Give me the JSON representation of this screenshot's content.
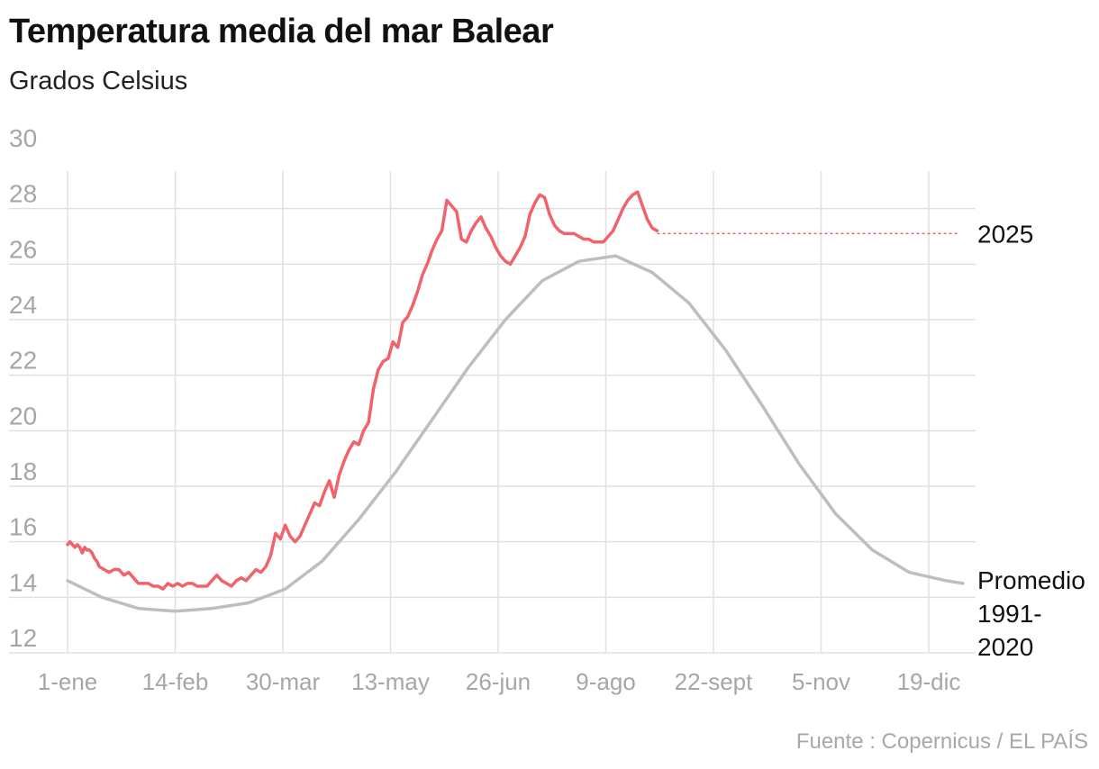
{
  "title": "Temperatura media del mar Balear",
  "subtitle": "Grados Celsius",
  "source": "Fuente : Copernicus / EL PAÍS",
  "colors": {
    "current": "#f0636b",
    "average": "#b9c0be",
    "grid": "#e0e0e0",
    "tick": "#a6a6a6",
    "label": "#111111"
  },
  "chart_data": {
    "type": "line",
    "title": "Temperatura media del mar Balear",
    "subtitle": "Grados Celsius",
    "xlabel": "",
    "ylabel": "",
    "x_unit": "day of year",
    "xlim": [
      1,
      365
    ],
    "ylim": [
      12,
      30
    ],
    "y_ticks": [
      12,
      14,
      16,
      18,
      20,
      22,
      24,
      26,
      28,
      30
    ],
    "x_ticks": [
      {
        "x": 1,
        "label": "1-ene"
      },
      {
        "x": 45,
        "label": "14-feb"
      },
      {
        "x": 89,
        "label": "30-mar"
      },
      {
        "x": 133,
        "label": "13-may"
      },
      {
        "x": 177,
        "label": "26-jun"
      },
      {
        "x": 221,
        "label": "9-ago"
      },
      {
        "x": 265,
        "label": "22-sept"
      },
      {
        "x": 309,
        "label": "5-nov"
      },
      {
        "x": 353,
        "label": "19-dic"
      }
    ],
    "grid": true,
    "series": [
      {
        "name": "2025",
        "color": "#f0636b",
        "x": [
          1,
          2,
          3,
          4,
          5,
          6,
          7,
          8,
          9,
          10,
          11,
          12,
          13,
          14,
          16,
          18,
          20,
          22,
          24,
          26,
          28,
          30,
          32,
          34,
          36,
          38,
          40,
          42,
          44,
          46,
          48,
          50,
          52,
          54,
          56,
          58,
          60,
          62,
          64,
          66,
          68,
          70,
          72,
          74,
          76,
          78,
          80,
          82,
          84,
          86,
          88,
          90,
          92,
          94,
          96,
          98,
          100,
          102,
          104,
          106,
          108,
          110,
          112,
          114,
          116,
          118,
          120,
          122,
          124,
          126,
          128,
          130,
          132,
          134,
          136,
          138,
          140,
          142,
          144,
          146,
          148,
          150,
          152,
          154,
          156,
          158,
          160,
          162,
          164,
          166,
          168,
          170,
          172,
          174,
          176,
          178,
          180,
          182,
          184,
          186,
          188,
          190,
          192,
          194,
          196,
          198,
          200,
          202,
          204,
          206,
          208,
          210,
          212,
          214,
          216,
          218,
          220,
          222,
          224,
          226,
          228,
          230,
          232,
          234,
          236,
          238,
          240,
          242
        ],
        "values": [
          15.9,
          16.0,
          15.9,
          15.8,
          15.9,
          15.8,
          15.6,
          15.8,
          15.7,
          15.7,
          15.6,
          15.4,
          15.3,
          15.1,
          15.0,
          14.9,
          15.0,
          15.0,
          14.8,
          14.9,
          14.7,
          14.5,
          14.5,
          14.5,
          14.4,
          14.4,
          14.3,
          14.5,
          14.4,
          14.5,
          14.4,
          14.5,
          14.5,
          14.4,
          14.4,
          14.4,
          14.6,
          14.8,
          14.6,
          14.5,
          14.4,
          14.6,
          14.7,
          14.6,
          14.8,
          15.0,
          14.9,
          15.1,
          15.5,
          16.3,
          16.1,
          16.6,
          16.2,
          16.0,
          16.2,
          16.6,
          17.0,
          17.4,
          17.3,
          17.8,
          18.2,
          17.6,
          18.4,
          18.9,
          19.3,
          19.6,
          19.5,
          20.0,
          20.3,
          21.5,
          22.2,
          22.5,
          22.6,
          23.2,
          23.0,
          23.9,
          24.1,
          24.5,
          25.0,
          25.6,
          26.0,
          26.5,
          26.9,
          27.2,
          28.3,
          28.1,
          27.9,
          26.9,
          26.8,
          27.2,
          27.5,
          27.7,
          27.3,
          27.0,
          26.6,
          26.3,
          26.1,
          26.0,
          26.3,
          26.6,
          27.0,
          27.8,
          28.2,
          28.5,
          28.4,
          27.8,
          27.4,
          27.2,
          27.1,
          27.1,
          27.1,
          27.0,
          26.9,
          26.9,
          26.8,
          26.8,
          26.8,
          27.0,
          27.2,
          27.6,
          28.0,
          28.3,
          28.5,
          28.6,
          28.1,
          27.6,
          27.3,
          27.2
        ],
        "projection": {
          "from_x": 242,
          "to_x": 367,
          "value": 27.1,
          "style": "dotted"
        },
        "label": "2025"
      },
      {
        "name": "Promedio 1991-2020",
        "color": "#b9c0be",
        "x": [
          1,
          15,
          30,
          45,
          60,
          75,
          90,
          105,
          120,
          135,
          150,
          165,
          180,
          195,
          210,
          225,
          240,
          255,
          270,
          285,
          300,
          315,
          330,
          345,
          360,
          367
        ],
        "values": [
          14.6,
          14.0,
          13.6,
          13.5,
          13.6,
          13.8,
          14.3,
          15.3,
          16.8,
          18.5,
          20.4,
          22.3,
          24.0,
          25.4,
          26.1,
          26.3,
          25.7,
          24.6,
          22.9,
          20.9,
          18.8,
          17.0,
          15.7,
          14.9,
          14.6,
          14.5
        ],
        "label_lines": [
          "Promedio",
          "1991-",
          "2020"
        ]
      }
    ]
  }
}
